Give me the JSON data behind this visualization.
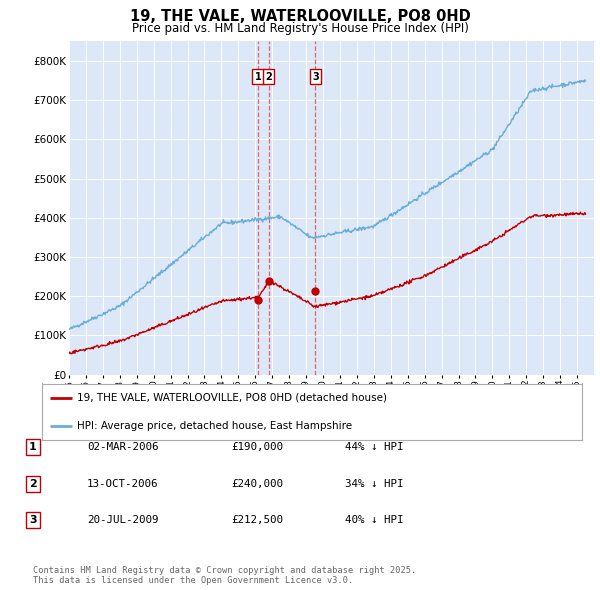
{
  "title": "19, THE VALE, WATERLOOVILLE, PO8 0HD",
  "subtitle": "Price paid vs. HM Land Registry's House Price Index (HPI)",
  "plot_bg_color": "#dce8f8",
  "ylim": [
    0,
    850000
  ],
  "yticks": [
    0,
    100000,
    200000,
    300000,
    400000,
    500000,
    600000,
    700000,
    800000
  ],
  "ytick_labels": [
    "£0",
    "£100K",
    "£200K",
    "£300K",
    "£400K",
    "£500K",
    "£600K",
    "£700K",
    "£800K"
  ],
  "hpi_color": "#6aaed6",
  "price_color": "#c00000",
  "vline_color": "#e05050",
  "transactions": [
    {
      "label": "1",
      "date_x": 2006.17,
      "price": 190000,
      "pct": "44%",
      "display": "02-MAR-2006",
      "amount": "£190,000"
    },
    {
      "label": "2",
      "date_x": 2006.79,
      "price": 240000,
      "pct": "34%",
      "display": "13-OCT-2006",
      "amount": "£240,000"
    },
    {
      "label": "3",
      "date_x": 2009.55,
      "price": 212500,
      "pct": "40%",
      "display": "20-JUL-2009",
      "amount": "£212,500"
    }
  ],
  "legend_line1": "19, THE VALE, WATERLOOVILLE, PO8 0HD (detached house)",
  "legend_line2": "HPI: Average price, detached house, East Hampshire",
  "footnote": "Contains HM Land Registry data © Crown copyright and database right 2025.\nThis data is licensed under the Open Government Licence v3.0.",
  "xmin": 1995,
  "xmax": 2026
}
